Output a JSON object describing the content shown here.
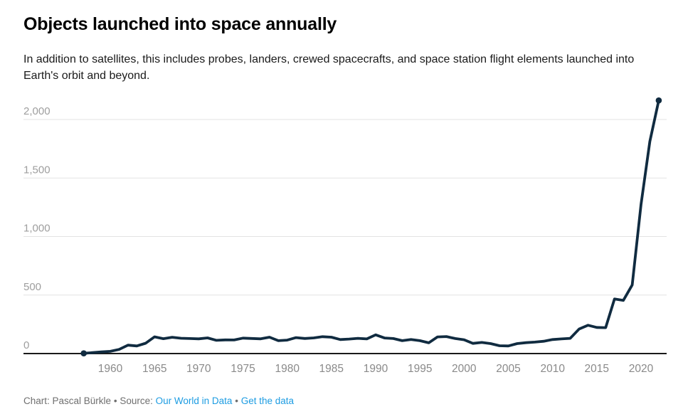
{
  "header": {
    "title": "Objects launched into space annually",
    "subtitle": "In addition to satellites, this includes probes, landers, crewed spacecrafts, and space station flight elements launched into Earth's orbit and beyond."
  },
  "chart_data": {
    "type": "line",
    "title": "Objects launched into space annually",
    "series_name": "Objects launched into space",
    "x": [
      1957,
      1958,
      1959,
      1960,
      1961,
      1962,
      1963,
      1964,
      1965,
      1966,
      1967,
      1968,
      1969,
      1970,
      1971,
      1972,
      1973,
      1974,
      1975,
      1976,
      1977,
      1978,
      1979,
      1980,
      1981,
      1982,
      1983,
      1984,
      1985,
      1986,
      1987,
      1988,
      1989,
      1990,
      1991,
      1992,
      1993,
      1994,
      1995,
      1996,
      1997,
      1998,
      1999,
      2000,
      2001,
      2002,
      2003,
      2004,
      2005,
      2006,
      2007,
      2008,
      2009,
      2010,
      2011,
      2012,
      2013,
      2014,
      2015,
      2016,
      2017,
      2018,
      2019,
      2020,
      2021,
      2022
    ],
    "values": [
      2,
      8,
      14,
      19,
      35,
      72,
      65,
      88,
      143,
      127,
      139,
      131,
      128,
      126,
      134,
      113,
      117,
      116,
      132,
      129,
      126,
      140,
      110,
      115,
      136,
      129,
      134,
      144,
      140,
      120,
      124,
      130,
      125,
      160,
      133,
      128,
      110,
      120,
      110,
      92,
      142,
      145,
      128,
      118,
      87,
      95,
      85,
      67,
      65,
      85,
      93,
      98,
      105,
      120,
      125,
      130,
      210,
      242,
      223,
      221,
      466,
      454,
      586,
      1274,
      1813,
      2163
    ],
    "x_ticks": [
      1960,
      1965,
      1970,
      1975,
      1980,
      1985,
      1990,
      1995,
      2000,
      2005,
      2010,
      2015,
      2020
    ],
    "y_ticks": [
      0,
      500,
      1000,
      1500,
      2000
    ],
    "y_tick_labels": [
      "0",
      "500",
      "1,000",
      "1,500",
      "2,000"
    ],
    "xlim": [
      1957,
      2022
    ],
    "ylim": [
      0,
      2200
    ],
    "xlabel": "",
    "ylabel": "",
    "grid": "horizontal",
    "legend": "none",
    "line_color": "#102b40",
    "marker": "first-and-last-point"
  },
  "footer": {
    "credit": "Chart: Pascal Bürkle",
    "sep": "•",
    "source_label": "Source:",
    "source_link_label": "Our World in Data",
    "data_link_label": "Get the data"
  },
  "colors": {
    "line": "#102b40",
    "grid": "#e3e3e3",
    "axis": "#1a1a1a",
    "y_tick_text": "#9e9e9e",
    "x_tick_text": "#8a8a8a",
    "footer_text": "#6f6f6f",
    "link_blue": "#1d9ce2",
    "background": "#ffffff"
  }
}
